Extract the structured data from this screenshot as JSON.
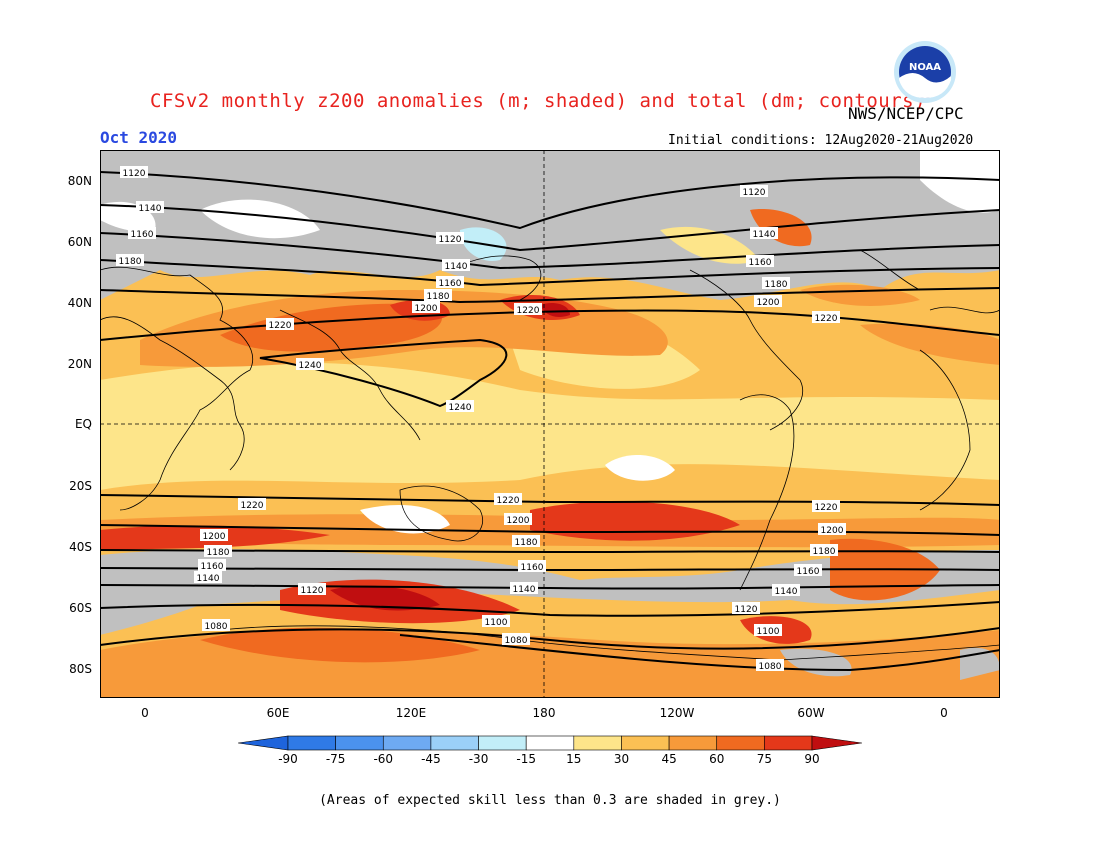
{
  "title": "CFSv2 monthly z200 anomalies (m; shaded) and total (dm; contours)",
  "agency": "NWS/NCEP/CPC",
  "logo_text": "NOAA",
  "valid_month": "Oct 2020",
  "initial_conditions": "Initial conditions: 12Aug2020-21Aug2020",
  "lat_labels": [
    "80N",
    "60N",
    "40N",
    "20N",
    "EQ",
    "20S",
    "40S",
    "60S",
    "80S"
  ],
  "lon_labels": [
    "0",
    "60E",
    "120E",
    "180",
    "120W",
    "60W",
    "0"
  ],
  "colorbar": {
    "levels": [
      "-90",
      "-75",
      "-60",
      "-45",
      "-30",
      "-15",
      "15",
      "30",
      "45",
      "60",
      "75",
      "90"
    ],
    "colors": [
      "#1e64dc",
      "#2f7ae6",
      "#4b92ee",
      "#6eaaf2",
      "#9bd0f8",
      "#c2eef8",
      "#ffffff",
      "#fde58a",
      "#fbc054",
      "#f79a3a",
      "#f06a20",
      "#e4381a",
      "#c00e10"
    ]
  },
  "contour_labels": {
    "c1080": "1080",
    "c1100": "1100",
    "c1120": "1120",
    "c1140": "1140",
    "c1160": "1160",
    "c1180": "1180",
    "c1200": "1200",
    "c1220": "1220",
    "c1240": "1240"
  },
  "note": "(Areas of expected skill less than 0.3 are shaded in grey.)"
}
